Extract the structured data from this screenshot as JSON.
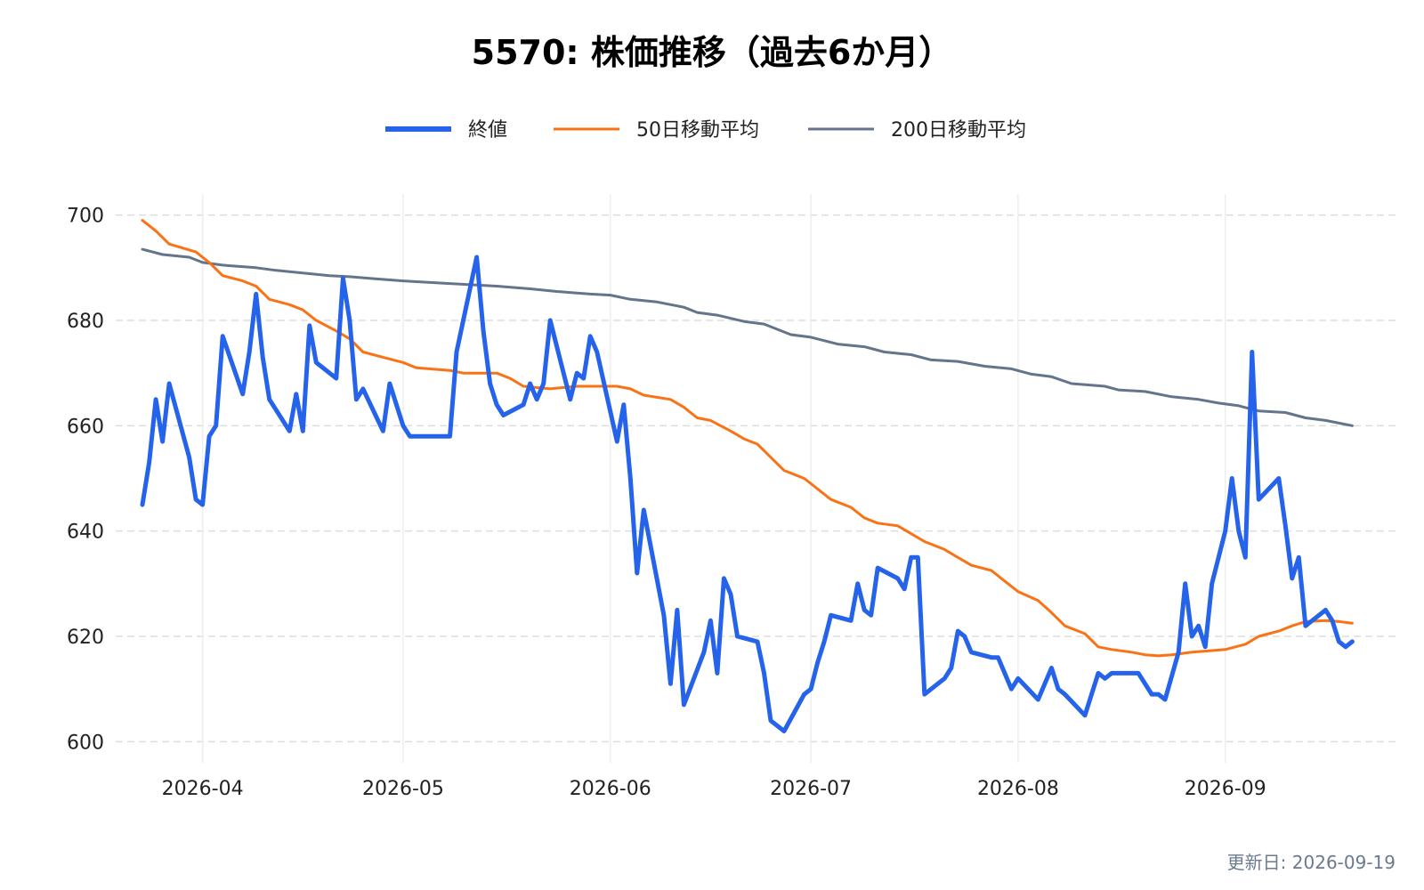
{
  "chart_data": {
    "type": "line",
    "title": "5570: 株価推移（過去6か月）",
    "xlabel": "",
    "ylabel": "",
    "ylim": [
      596,
      704
    ],
    "yticks": [
      600,
      620,
      640,
      660,
      680,
      700
    ],
    "x_tick_labels": [
      "2026-04",
      "2026-05",
      "2026-06",
      "2026-07",
      "2026-08",
      "2026-09"
    ],
    "x_tick_dates": [
      "2026-04-01",
      "2026-05-01",
      "2026-06-01",
      "2026-07-01",
      "2026-08-01",
      "2026-09-01"
    ],
    "x_range": [
      "2026-03-19",
      "2026-09-27"
    ],
    "grid": true,
    "legend_position": "top-center",
    "series": [
      {
        "name": "終値",
        "color": "#2563eb",
        "points": [
          [
            "2026-03-23",
            645
          ],
          [
            "2026-03-24",
            653
          ],
          [
            "2026-03-25",
            665
          ],
          [
            "2026-03-26",
            657
          ],
          [
            "2026-03-27",
            668
          ],
          [
            "2026-03-30",
            654
          ],
          [
            "2026-03-31",
            646
          ],
          [
            "2026-04-01",
            645
          ],
          [
            "2026-04-02",
            658
          ],
          [
            "2026-04-03",
            660
          ],
          [
            "2026-04-04",
            677
          ],
          [
            "2026-04-07",
            666
          ],
          [
            "2026-04-08",
            674
          ],
          [
            "2026-04-09",
            685
          ],
          [
            "2026-04-10",
            673
          ],
          [
            "2026-04-11",
            665
          ],
          [
            "2026-04-14",
            659
          ],
          [
            "2026-04-15",
            666
          ],
          [
            "2026-04-16",
            659
          ],
          [
            "2026-04-17",
            679
          ],
          [
            "2026-04-18",
            672
          ],
          [
            "2026-04-21",
            669
          ],
          [
            "2026-04-22",
            688
          ],
          [
            "2026-04-23",
            680
          ],
          [
            "2026-04-24",
            665
          ],
          [
            "2026-04-25",
            667
          ],
          [
            "2026-04-28",
            659
          ],
          [
            "2026-04-29",
            668
          ],
          [
            "2026-05-01",
            660
          ],
          [
            "2026-05-02",
            658
          ],
          [
            "2026-05-07",
            658
          ],
          [
            "2026-05-08",
            658
          ],
          [
            "2026-05-09",
            674
          ],
          [
            "2026-05-12",
            692
          ],
          [
            "2026-05-13",
            678
          ],
          [
            "2026-05-14",
            668
          ],
          [
            "2026-05-15",
            664
          ],
          [
            "2026-05-16",
            662
          ],
          [
            "2026-05-19",
            664
          ],
          [
            "2026-05-20",
            668
          ],
          [
            "2026-05-21",
            665
          ],
          [
            "2026-05-22",
            668
          ],
          [
            "2026-05-23",
            680
          ],
          [
            "2026-05-26",
            665
          ],
          [
            "2026-05-27",
            670
          ],
          [
            "2026-05-28",
            669
          ],
          [
            "2026-05-29",
            677
          ],
          [
            "2026-05-30",
            674
          ],
          [
            "2026-06-02",
            657
          ],
          [
            "2026-06-03",
            664
          ],
          [
            "2026-06-04",
            650
          ],
          [
            "2026-06-05",
            632
          ],
          [
            "2026-06-06",
            644
          ],
          [
            "2026-06-09",
            624
          ],
          [
            "2026-06-10",
            611
          ],
          [
            "2026-06-11",
            625
          ],
          [
            "2026-06-12",
            607
          ],
          [
            "2026-06-15",
            617
          ],
          [
            "2026-06-16",
            623
          ],
          [
            "2026-06-17",
            613
          ],
          [
            "2026-06-18",
            631
          ],
          [
            "2026-06-19",
            628
          ],
          [
            "2026-06-20",
            620
          ],
          [
            "2026-06-23",
            619
          ],
          [
            "2026-06-24",
            613
          ],
          [
            "2026-06-25",
            604
          ],
          [
            "2026-06-27",
            602
          ],
          [
            "2026-06-30",
            609
          ],
          [
            "2026-07-01",
            610
          ],
          [
            "2026-07-02",
            615
          ],
          [
            "2026-07-03",
            619
          ],
          [
            "2026-07-04",
            624
          ],
          [
            "2026-07-07",
            623
          ],
          [
            "2026-07-08",
            630
          ],
          [
            "2026-07-09",
            625
          ],
          [
            "2026-07-10",
            624
          ],
          [
            "2026-07-11",
            633
          ],
          [
            "2026-07-14",
            631
          ],
          [
            "2026-07-15",
            629
          ],
          [
            "2026-07-16",
            635
          ],
          [
            "2026-07-17",
            635
          ],
          [
            "2026-07-18",
            609
          ],
          [
            "2026-07-21",
            612
          ],
          [
            "2026-07-22",
            614
          ],
          [
            "2026-07-23",
            621
          ],
          [
            "2026-07-24",
            620
          ],
          [
            "2026-07-25",
            617
          ],
          [
            "2026-07-28",
            616
          ],
          [
            "2026-07-29",
            616
          ],
          [
            "2026-07-30",
            613
          ],
          [
            "2026-07-31",
            610
          ],
          [
            "2026-08-01",
            612
          ],
          [
            "2026-08-04",
            608
          ],
          [
            "2026-08-05",
            611
          ],
          [
            "2026-08-06",
            614
          ],
          [
            "2026-08-07",
            610
          ],
          [
            "2026-08-08",
            609
          ],
          [
            "2026-08-11",
            605
          ],
          [
            "2026-08-12",
            609
          ],
          [
            "2026-08-13",
            613
          ],
          [
            "2026-08-14",
            612
          ],
          [
            "2026-08-15",
            613
          ],
          [
            "2026-08-18",
            613
          ],
          [
            "2026-08-19",
            613
          ],
          [
            "2026-08-20",
            611
          ],
          [
            "2026-08-21",
            609
          ],
          [
            "2026-08-22",
            609
          ],
          [
            "2026-08-23",
            608
          ],
          [
            "2026-08-25",
            617
          ],
          [
            "2026-08-26",
            630
          ],
          [
            "2026-08-27",
            620
          ],
          [
            "2026-08-28",
            622
          ],
          [
            "2026-08-29",
            618
          ],
          [
            "2026-08-30",
            630
          ],
          [
            "2026-09-01",
            640
          ],
          [
            "2026-09-02",
            650
          ],
          [
            "2026-09-03",
            640
          ],
          [
            "2026-09-04",
            635
          ],
          [
            "2026-09-05",
            674
          ],
          [
            "2026-09-06",
            646
          ],
          [
            "2026-09-09",
            650
          ],
          [
            "2026-09-10",
            641
          ],
          [
            "2026-09-11",
            631
          ],
          [
            "2026-09-12",
            635
          ],
          [
            "2026-09-13",
            622
          ],
          [
            "2026-09-16",
            625
          ],
          [
            "2026-09-17",
            623
          ],
          [
            "2026-09-18",
            619
          ],
          [
            "2026-09-19",
            618
          ],
          [
            "2026-09-20",
            619
          ]
        ]
      },
      {
        "name": "50日移動平均",
        "color": "#f97316",
        "points": [
          [
            "2026-03-23",
            699
          ],
          [
            "2026-03-25",
            697
          ],
          [
            "2026-03-27",
            694.5
          ],
          [
            "2026-03-31",
            693
          ],
          [
            "2026-04-02",
            691
          ],
          [
            "2026-04-04",
            688.5
          ],
          [
            "2026-04-07",
            687.5
          ],
          [
            "2026-04-09",
            686.5
          ],
          [
            "2026-04-11",
            684
          ],
          [
            "2026-04-14",
            683
          ],
          [
            "2026-04-16",
            682
          ],
          [
            "2026-04-18",
            680
          ],
          [
            "2026-04-21",
            678
          ],
          [
            "2026-04-23",
            676.5
          ],
          [
            "2026-04-25",
            674
          ],
          [
            "2026-04-28",
            673
          ],
          [
            "2026-05-01",
            672
          ],
          [
            "2026-05-03",
            671
          ],
          [
            "2026-05-08",
            670.5
          ],
          [
            "2026-05-10",
            670
          ],
          [
            "2026-05-15",
            670
          ],
          [
            "2026-05-17",
            669
          ],
          [
            "2026-05-19",
            667.5
          ],
          [
            "2026-05-23",
            667
          ],
          [
            "2026-05-27",
            667.5
          ],
          [
            "2026-05-29",
            667.5
          ],
          [
            "2026-06-02",
            667.5
          ],
          [
            "2026-06-04",
            667
          ],
          [
            "2026-06-06",
            665.8
          ],
          [
            "2026-06-10",
            665
          ],
          [
            "2026-06-12",
            663.5
          ],
          [
            "2026-06-14",
            661.5
          ],
          [
            "2026-06-16",
            661
          ],
          [
            "2026-06-19",
            659
          ],
          [
            "2026-06-21",
            657.5
          ],
          [
            "2026-06-23",
            656.5
          ],
          [
            "2026-06-25",
            654
          ],
          [
            "2026-06-27",
            651.5
          ],
          [
            "2026-06-30",
            650
          ],
          [
            "2026-07-02",
            648
          ],
          [
            "2026-07-04",
            646
          ],
          [
            "2026-07-07",
            644.5
          ],
          [
            "2026-07-09",
            642.5
          ],
          [
            "2026-07-11",
            641.5
          ],
          [
            "2026-07-14",
            641
          ],
          [
            "2026-07-16",
            639.5
          ],
          [
            "2026-07-18",
            638
          ],
          [
            "2026-07-21",
            636.5
          ],
          [
            "2026-07-23",
            635
          ],
          [
            "2026-07-25",
            633.5
          ],
          [
            "2026-07-28",
            632.5
          ],
          [
            "2026-07-30",
            630.5
          ],
          [
            "2026-08-01",
            628.5
          ],
          [
            "2026-08-04",
            626.8
          ],
          [
            "2026-08-06",
            624.5
          ],
          [
            "2026-08-08",
            622
          ],
          [
            "2026-08-11",
            620.5
          ],
          [
            "2026-08-13",
            618
          ],
          [
            "2026-08-15",
            617.5
          ],
          [
            "2026-08-18",
            617
          ],
          [
            "2026-08-20",
            616.5
          ],
          [
            "2026-08-22",
            616.3
          ],
          [
            "2026-08-24",
            616.5
          ],
          [
            "2026-08-27",
            617
          ],
          [
            "2026-08-30",
            617.3
          ],
          [
            "2026-09-01",
            617.5
          ],
          [
            "2026-09-04",
            618.5
          ],
          [
            "2026-09-06",
            620
          ],
          [
            "2026-09-09",
            621
          ],
          [
            "2026-09-11",
            622
          ],
          [
            "2026-09-13",
            622.8
          ],
          [
            "2026-09-16",
            623
          ],
          [
            "2026-09-18",
            622.8
          ],
          [
            "2026-09-20",
            622.5
          ]
        ]
      },
      {
        "name": "200日移動平均",
        "color": "#64748b",
        "points": [
          [
            "2026-03-23",
            693.5
          ],
          [
            "2026-03-26",
            692.5
          ],
          [
            "2026-03-30",
            692
          ],
          [
            "2026-04-01",
            691
          ],
          [
            "2026-04-04",
            690.5
          ],
          [
            "2026-04-09",
            690
          ],
          [
            "2026-04-12",
            689.5
          ],
          [
            "2026-04-16",
            689
          ],
          [
            "2026-04-20",
            688.5
          ],
          [
            "2026-04-23",
            688.3
          ],
          [
            "2026-04-26",
            688
          ],
          [
            "2026-05-01",
            687.5
          ],
          [
            "2026-05-08",
            687
          ],
          [
            "2026-05-15",
            686.5
          ],
          [
            "2026-05-20",
            686
          ],
          [
            "2026-05-24",
            685.5
          ],
          [
            "2026-05-29",
            685
          ],
          [
            "2026-06-01",
            684.8
          ],
          [
            "2026-06-04",
            684
          ],
          [
            "2026-06-08",
            683.5
          ],
          [
            "2026-06-12",
            682.5
          ],
          [
            "2026-06-14",
            681.5
          ],
          [
            "2026-06-17",
            681
          ],
          [
            "2026-06-21",
            679.8
          ],
          [
            "2026-06-24",
            679.3
          ],
          [
            "2026-06-28",
            677.3
          ],
          [
            "2026-07-01",
            676.8
          ],
          [
            "2026-07-05",
            675.5
          ],
          [
            "2026-07-09",
            675
          ],
          [
            "2026-07-12",
            674
          ],
          [
            "2026-07-16",
            673.5
          ],
          [
            "2026-07-19",
            672.5
          ],
          [
            "2026-07-23",
            672.2
          ],
          [
            "2026-07-27",
            671.3
          ],
          [
            "2026-07-31",
            670.8
          ],
          [
            "2026-08-03",
            669.8
          ],
          [
            "2026-08-06",
            669.3
          ],
          [
            "2026-08-09",
            668
          ],
          [
            "2026-08-14",
            667.5
          ],
          [
            "2026-08-16",
            666.8
          ],
          [
            "2026-08-20",
            666.5
          ],
          [
            "2026-08-24",
            665.5
          ],
          [
            "2026-08-28",
            665
          ],
          [
            "2026-08-31",
            664.3
          ],
          [
            "2026-09-03",
            663.8
          ],
          [
            "2026-09-06",
            662.8
          ],
          [
            "2026-09-10",
            662.5
          ],
          [
            "2026-09-13",
            661.5
          ],
          [
            "2026-09-16",
            661
          ],
          [
            "2026-09-18",
            660.5
          ],
          [
            "2026-09-20",
            660
          ]
        ]
      }
    ]
  },
  "footer": {
    "update_text": "更新日: 2026-09-19"
  }
}
